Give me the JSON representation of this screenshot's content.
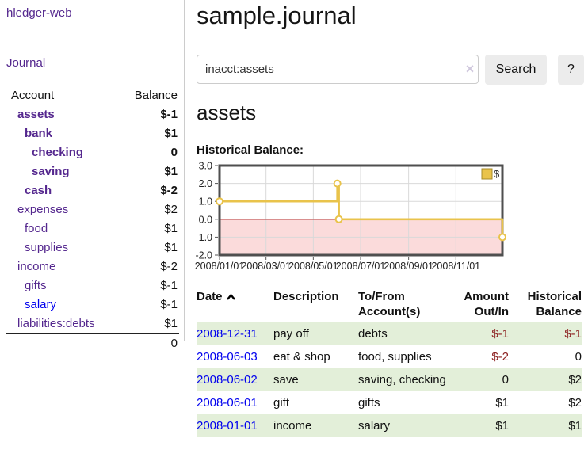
{
  "app": {
    "brand": "hledger-web",
    "nav_journal": "Journal"
  },
  "sidebar": {
    "columns": {
      "account": "Account",
      "balance": "Balance"
    },
    "accounts": [
      {
        "name": "assets",
        "level": 1,
        "bold": true,
        "link_color": "purple",
        "balance": "$-1",
        "balance_style": "neg-strong"
      },
      {
        "name": "bank",
        "level": 2,
        "bold": true,
        "link_color": "purple",
        "balance": "$1",
        "balance_style": "normal"
      },
      {
        "name": "checking",
        "level": 3,
        "bold": true,
        "link_color": "purple",
        "balance": "0",
        "balance_style": "normal"
      },
      {
        "name": "saving",
        "level": 3,
        "bold": true,
        "link_color": "purple",
        "balance": "$1",
        "balance_style": "normal"
      },
      {
        "name": "cash",
        "level": 2,
        "bold": true,
        "link_color": "purple",
        "balance": "$-2",
        "balance_style": "neg-strong"
      },
      {
        "name": "expenses",
        "level": 1,
        "bold": false,
        "link_color": "purple",
        "balance": "$2",
        "balance_style": "normal"
      },
      {
        "name": "food",
        "level": 2,
        "bold": false,
        "link_color": "purple",
        "balance": "$1",
        "balance_style": "normal"
      },
      {
        "name": "supplies",
        "level": 2,
        "bold": false,
        "link_color": "purple",
        "balance": "$1",
        "balance_style": "normal"
      },
      {
        "name": "income",
        "level": 1,
        "bold": false,
        "link_color": "purple",
        "balance": "$-2",
        "balance_style": "neg-soft"
      },
      {
        "name": "gifts",
        "level": 2,
        "bold": false,
        "link_color": "purple",
        "balance": "$-1",
        "balance_style": "neg-soft"
      },
      {
        "name": "salary",
        "level": 2,
        "bold": false,
        "link_color": "blue",
        "balance": "$-1",
        "balance_style": "neg-soft"
      },
      {
        "name": "liabilities:debts",
        "level": 1,
        "bold": false,
        "link_color": "purple",
        "balance": "$1",
        "balance_style": "normal"
      }
    ],
    "total": "0"
  },
  "header": {
    "title": "sample.journal"
  },
  "search": {
    "query": "inacct:assets",
    "clear_icon": "×",
    "search_label": "Search",
    "help_label": "?"
  },
  "account_page": {
    "heading": "assets",
    "chart_label": "Historical Balance:"
  },
  "chart_data": {
    "type": "line",
    "step": true,
    "title": "Historical Balance",
    "legend": {
      "label": "$",
      "position": "top-right"
    },
    "x_range": [
      "2008-01-01",
      "2008-12-31"
    ],
    "ylim": [
      -2.0,
      3.0
    ],
    "y_ticks": [
      {
        "value": 3,
        "label": "3.0"
      },
      {
        "value": 2,
        "label": "2.0"
      },
      {
        "value": 1,
        "label": "1.0"
      },
      {
        "value": 0,
        "label": "0.0"
      },
      {
        "value": -1,
        "label": "-1.0"
      },
      {
        "value": -2,
        "label": "-2.0"
      }
    ],
    "x_ticks": [
      {
        "date": "2008-01-01",
        "label": "2008/01/01"
      },
      {
        "date": "2008-03-01",
        "label": "2008/03/01"
      },
      {
        "date": "2008-05-01",
        "label": "2008/05/01"
      },
      {
        "date": "2008-07-01",
        "label": "2008/07/01"
      },
      {
        "date": "2008-09-01",
        "label": "2008/09/01"
      },
      {
        "date": "2008-11-01",
        "label": "2008/11/01"
      }
    ],
    "series": [
      {
        "name": "$",
        "points": [
          {
            "date": "2008-01-01",
            "value": 1
          },
          {
            "date": "2008-06-01",
            "value": 2
          },
          {
            "date": "2008-06-03",
            "value": 0
          },
          {
            "date": "2008-12-31",
            "value": -1
          }
        ]
      }
    ],
    "colors": {
      "line": "#e9c34b",
      "marker_fill": "#ffffff",
      "negative_region": "#fbdbdb",
      "zero_line": "#a01010",
      "grid": "#d9d9d9",
      "border": "#4f4f4f",
      "legend_box_border": "#a78b28"
    }
  },
  "register": {
    "columns": [
      {
        "l1": "Date",
        "l2": "",
        "align": "left",
        "sortable": true
      },
      {
        "l1": "Description",
        "l2": "",
        "align": "left"
      },
      {
        "l1": "To/From",
        "l2": "Account(s)",
        "align": "left"
      },
      {
        "l1": "Amount",
        "l2": "Out/In",
        "align": "right"
      },
      {
        "l1": "Historical",
        "l2": "Balance",
        "align": "right"
      }
    ],
    "rows": [
      {
        "date": "2008-12-31",
        "description": "pay off",
        "accounts": "debts",
        "amount": "$-1",
        "amount_neg": true,
        "balance": "$-1",
        "balance_neg": true,
        "shade": true
      },
      {
        "date": "2008-06-03",
        "description": "eat & shop",
        "accounts": "food, supplies",
        "amount": "$-2",
        "amount_neg": true,
        "balance": "0",
        "balance_neg": false,
        "shade": false
      },
      {
        "date": "2008-06-02",
        "description": "save",
        "accounts": "saving, checking",
        "amount": "0",
        "amount_neg": false,
        "balance": "$2",
        "balance_neg": false,
        "shade": true
      },
      {
        "date": "2008-06-01",
        "description": "gift",
        "accounts": "gifts",
        "amount": "$1",
        "amount_neg": false,
        "balance": "$2",
        "balance_neg": false,
        "shade": false
      },
      {
        "date": "2008-01-01",
        "description": "income",
        "accounts": "salary",
        "amount": "$1",
        "amount_neg": false,
        "balance": "$1",
        "balance_neg": false,
        "shade": true
      }
    ]
  }
}
